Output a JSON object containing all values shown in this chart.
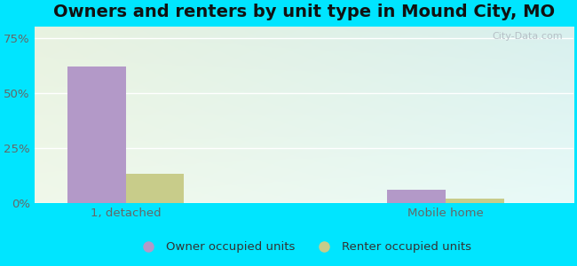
{
  "title": "Owners and renters by unit type in Mound City, MO",
  "categories": [
    "1, detached",
    "Mobile home"
  ],
  "owner_values": [
    62.0,
    6.0
  ],
  "renter_values": [
    13.0,
    2.0
  ],
  "owner_color": "#b399c8",
  "renter_color": "#c8cc8a",
  "yticks": [
    0,
    25,
    50,
    75
  ],
  "ylim": [
    0,
    80
  ],
  "bar_width": 0.32,
  "background_color": "#00e5ff",
  "legend_owner": "Owner occupied units",
  "legend_renter": "Renter occupied units",
  "watermark": "City-Data.com",
  "title_fontsize": 14,
  "tick_fontsize": 9.5,
  "legend_fontsize": 9.5,
  "x_positions": [
    0.55,
    2.3
  ],
  "xlim": [
    0.05,
    3.0
  ]
}
